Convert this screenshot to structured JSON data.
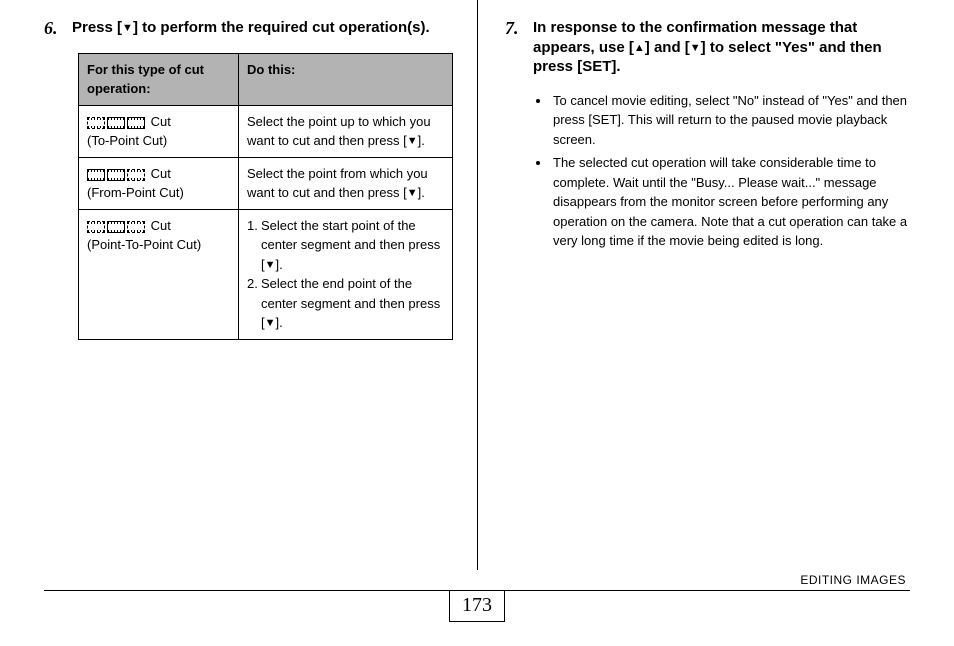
{
  "colors": {
    "background": "#ffffff",
    "text": "#000000",
    "table_header_bg": "#b3b3b3",
    "border": "#000000"
  },
  "typography": {
    "body_font": "Arial, Helvetica, sans-serif",
    "step_num_font": "Georgia, Times New Roman, serif",
    "page_num_font": "Times New Roman, serif",
    "step_text_size_pt": 15,
    "body_size_pt": 13,
    "footer_label_size_pt": 12,
    "page_num_size_pt": 20
  },
  "glyphs": {
    "down_triangle": "▼",
    "up_triangle": "▲"
  },
  "left": {
    "step_num": "6.",
    "step_text_pre": "Press [",
    "step_text_post": "] to perform the required cut operation(s).",
    "table": {
      "header_col1": "For this type of cut operation:",
      "header_col2": "Do this:",
      "rows": [
        {
          "icon_pattern": [
            "dashed",
            "solid",
            "solid"
          ],
          "name": "Cut",
          "sub": "(To-Point Cut)",
          "action_pre": "Select the point up to which you want to cut and then press [",
          "action_post": "]."
        },
        {
          "icon_pattern": [
            "solid",
            "solid",
            "dashed"
          ],
          "name": "Cut",
          "sub": "(From-Point Cut)",
          "action_pre": "Select the point from which you want to cut and then press [",
          "action_post": "]."
        },
        {
          "icon_pattern": [
            "dashed",
            "solid",
            "dashed"
          ],
          "name": "Cut",
          "sub": "(Point-To-Point Cut)",
          "steps": [
            {
              "pre": "Select the start point of the center segment and then press [",
              "post": "]."
            },
            {
              "pre": "Select the end point of the center segment and then press [",
              "post": "]."
            }
          ]
        }
      ]
    }
  },
  "right": {
    "step_num": "7.",
    "step_text_a": "In response to the confirmation message that appears, use [",
    "step_text_b": "] and [",
    "step_text_c": "] to select \"Yes\" and then press [SET].",
    "bullets": [
      "To cancel movie editing, select \"No\" instead of \"Yes\" and then press [SET]. This will return to the paused movie playback screen.",
      "The selected cut operation will take considerable time to complete. Wait until the \"Busy... Please wait...\" message disappears from the monitor screen before performing any operation on the camera. Note that a cut operation can take a very long time if the movie being edited is long."
    ]
  },
  "footer": {
    "page_number": "173",
    "section_label": "EDITING IMAGES"
  }
}
